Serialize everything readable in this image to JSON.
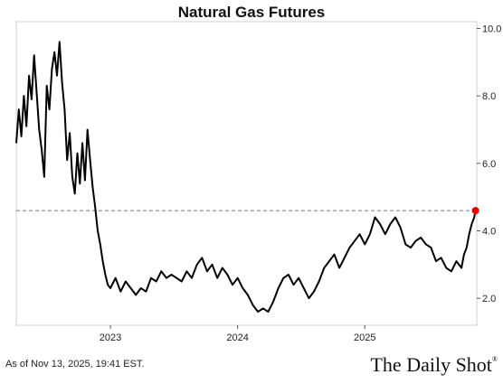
{
  "chart_data": {
    "type": "line",
    "title": "Natural Gas Futures",
    "ylim": [
      1.2,
      10.2
    ],
    "y_ticks": [
      2.0,
      4.0,
      6.0,
      8.0,
      10.0
    ],
    "y_tick_labels": [
      "2.0",
      "4.0",
      "6.0",
      "8.0",
      "10.0"
    ],
    "xlim": [
      2022.26,
      2025.88
    ],
    "x_ticks": [
      2023,
      2024,
      2025
    ],
    "x_tick_labels": [
      "2023",
      "2024",
      "2025"
    ],
    "grid": false,
    "reference_line": {
      "value": 4.6,
      "style": "dashed"
    },
    "last_point_marker": {
      "x": 2025.87,
      "y": 4.6,
      "color": "#e60000"
    },
    "line_color": "#000000",
    "series": [
      {
        "x": [
          2022.26,
          2022.28,
          2022.3,
          2022.32,
          2022.34,
          2022.36,
          2022.38,
          2022.4,
          2022.42,
          2022.44,
          2022.46,
          2022.48,
          2022.5,
          2022.52,
          2022.54,
          2022.56,
          2022.58,
          2022.6,
          2022.62,
          2022.64,
          2022.66,
          2022.68,
          2022.7,
          2022.72,
          2022.74,
          2022.76,
          2022.78,
          2022.8,
          2022.82,
          2022.84,
          2022.86,
          2022.88,
          2022.9,
          2022.92,
          2022.94,
          2022.96,
          2022.98,
          2023.0,
          2023.04,
          2023.08,
          2023.12,
          2023.16,
          2023.2,
          2023.24,
          2023.28,
          2023.32,
          2023.36,
          2023.4,
          2023.44,
          2023.48,
          2023.52,
          2023.56,
          2023.6,
          2023.64,
          2023.68,
          2023.72,
          2023.76,
          2023.8,
          2023.84,
          2023.88,
          2023.92,
          2023.96,
          2024.0,
          2024.04,
          2024.08,
          2024.12,
          2024.16,
          2024.2,
          2024.24,
          2024.28,
          2024.32,
          2024.36,
          2024.4,
          2024.44,
          2024.48,
          2024.52,
          2024.56,
          2024.6,
          2024.64,
          2024.68,
          2024.72,
          2024.76,
          2024.8,
          2024.84,
          2024.88,
          2024.92,
          2024.96,
          2025.0,
          2025.04,
          2025.08,
          2025.12,
          2025.16,
          2025.2,
          2025.24,
          2025.28,
          2025.32,
          2025.36,
          2025.4,
          2025.44,
          2025.48,
          2025.52,
          2025.56,
          2025.6,
          2025.64,
          2025.68,
          2025.72,
          2025.74,
          2025.76,
          2025.78,
          2025.8,
          2025.82,
          2025.84,
          2025.86,
          2025.87
        ],
        "y": [
          6.6,
          7.6,
          6.8,
          8.0,
          7.1,
          8.6,
          7.9,
          9.2,
          8.1,
          7.0,
          6.4,
          5.6,
          8.3,
          7.6,
          8.8,
          9.3,
          8.6,
          9.6,
          8.4,
          7.6,
          6.1,
          6.9,
          5.6,
          5.1,
          6.3,
          5.4,
          6.6,
          5.5,
          7.0,
          6.1,
          5.3,
          4.7,
          4.0,
          3.6,
          3.1,
          2.7,
          2.4,
          2.3,
          2.6,
          2.2,
          2.5,
          2.3,
          2.1,
          2.3,
          2.2,
          2.6,
          2.5,
          2.8,
          2.6,
          2.7,
          2.6,
          2.5,
          2.8,
          2.6,
          3.0,
          3.2,
          2.8,
          3.0,
          2.6,
          2.9,
          2.7,
          2.4,
          2.6,
          2.3,
          2.1,
          1.8,
          1.6,
          1.7,
          1.6,
          1.9,
          2.3,
          2.6,
          2.7,
          2.4,
          2.6,
          2.3,
          2.0,
          2.2,
          2.5,
          2.9,
          3.1,
          3.3,
          2.9,
          3.2,
          3.5,
          3.7,
          3.9,
          3.6,
          3.9,
          4.4,
          4.2,
          3.9,
          4.2,
          4.4,
          4.1,
          3.6,
          3.5,
          3.7,
          3.8,
          3.6,
          3.5,
          3.1,
          3.2,
          2.9,
          2.8,
          3.1,
          3.0,
          2.9,
          3.3,
          3.5,
          3.9,
          4.2,
          4.4,
          4.6
        ]
      }
    ]
  },
  "footnote": "As of Nov 13, 2025, 19:41 EST.",
  "brand": {
    "name": "The Daily Shot",
    "mark": "®"
  }
}
